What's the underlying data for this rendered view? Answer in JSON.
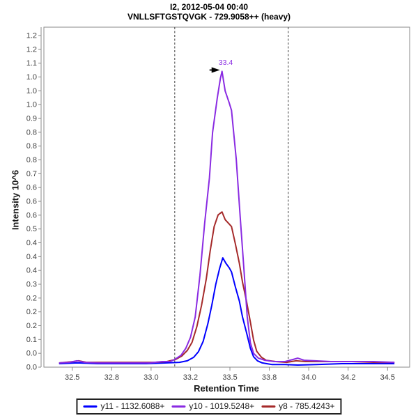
{
  "chart_data": {
    "type": "line",
    "title": "I2, 2012-05-04 00:40",
    "subtitle": "VNLLSFTGSTQVGK - 729.9058++ (heavy)",
    "xlabel": "Retention Time",
    "ylabel": "Intensity 10^6",
    "grid": false,
    "legend_position": "bottom-center",
    "x_axis": {
      "min": 32.32,
      "max": 34.64,
      "tick_values": [
        32.5,
        32.75,
        33.0,
        33.25,
        33.5,
        33.75,
        34.0,
        34.25,
        34.5
      ],
      "tick_labels": [
        "32.5",
        "32.8",
        "33.0",
        "33.2",
        "33.5",
        "33.8",
        "34.0",
        "34.2",
        "34.5"
      ]
    },
    "y_axis": {
      "min": 0,
      "max": 1.2815,
      "top_tick_value": 1.25,
      "tick_labels": [
        "1.2",
        "1.2",
        "1.1",
        "1.0",
        "1.0",
        "1.0",
        "0.9",
        "0.8",
        "0.8",
        "0.8",
        "0.7",
        "0.6",
        "0.6",
        "0.6",
        "0.5",
        "0.4",
        "0.4",
        "0.4",
        "0.3",
        "0.2",
        "0.2",
        "0.2",
        "0.1",
        "0.0",
        "0.0"
      ]
    },
    "integration_boundaries": {
      "start_rt": 33.15,
      "end_rt": 33.87
    },
    "peak_annotation": {
      "label": "33.4",
      "rt": 33.45,
      "intensity": 1.12
    },
    "colors": {
      "axis": "#8a8a8a",
      "tick_text": "#414141",
      "boundary": "#3f3f3f",
      "arrow": "#000000"
    },
    "series": [
      {
        "name": "y11 - 1132.6088+",
        "color": "#0000FF",
        "points": [
          [
            32.42,
            0.013
          ],
          [
            32.53,
            0.016
          ],
          [
            32.66,
            0.013
          ],
          [
            32.81,
            0.013
          ],
          [
            32.97,
            0.013
          ],
          [
            33.1,
            0.016
          ],
          [
            33.18,
            0.018
          ],
          [
            33.23,
            0.024
          ],
          [
            33.27,
            0.037
          ],
          [
            33.3,
            0.058
          ],
          [
            33.33,
            0.097
          ],
          [
            33.36,
            0.163
          ],
          [
            33.385,
            0.233
          ],
          [
            33.41,
            0.312
          ],
          [
            33.435,
            0.373
          ],
          [
            33.455,
            0.412
          ],
          [
            33.475,
            0.391
          ],
          [
            33.495,
            0.375
          ],
          [
            33.51,
            0.359
          ],
          [
            33.535,
            0.302
          ],
          [
            33.56,
            0.249
          ],
          [
            33.58,
            0.189
          ],
          [
            33.605,
            0.131
          ],
          [
            33.63,
            0.071
          ],
          [
            33.65,
            0.039
          ],
          [
            33.675,
            0.024
          ],
          [
            33.705,
            0.016
          ],
          [
            33.765,
            0.01
          ],
          [
            33.85,
            0.01
          ],
          [
            33.93,
            0.008
          ],
          [
            34.05,
            0.01
          ],
          [
            34.21,
            0.013
          ],
          [
            34.38,
            0.013
          ],
          [
            34.54,
            0.013
          ]
        ]
      },
      {
        "name": "y10 - 1019.5248+",
        "color": "#8A2BE2",
        "points": [
          [
            32.42,
            0.016
          ],
          [
            32.48,
            0.018
          ],
          [
            32.53,
            0.024
          ],
          [
            32.58,
            0.018
          ],
          [
            32.66,
            0.016
          ],
          [
            32.77,
            0.016
          ],
          [
            32.88,
            0.016
          ],
          [
            32.99,
            0.016
          ],
          [
            33.07,
            0.021
          ],
          [
            33.12,
            0.021
          ],
          [
            33.15,
            0.029
          ],
          [
            33.19,
            0.045
          ],
          [
            33.22,
            0.071
          ],
          [
            33.25,
            0.113
          ],
          [
            33.28,
            0.189
          ],
          [
            33.31,
            0.346
          ],
          [
            33.34,
            0.543
          ],
          [
            33.37,
            0.713
          ],
          [
            33.39,
            0.884
          ],
          [
            33.42,
            1.015
          ],
          [
            33.44,
            1.089
          ],
          [
            33.45,
            1.115
          ],
          [
            33.47,
            1.041
          ],
          [
            33.495,
            0.997
          ],
          [
            33.51,
            0.968
          ],
          [
            33.54,
            0.784
          ],
          [
            33.565,
            0.569
          ],
          [
            33.59,
            0.359
          ],
          [
            33.61,
            0.189
          ],
          [
            33.63,
            0.092
          ],
          [
            33.65,
            0.052
          ],
          [
            33.68,
            0.034
          ],
          [
            33.72,
            0.026
          ],
          [
            33.78,
            0.021
          ],
          [
            33.85,
            0.021
          ],
          [
            33.9,
            0.029
          ],
          [
            33.93,
            0.034
          ],
          [
            33.97,
            0.026
          ],
          [
            34.04,
            0.024
          ],
          [
            34.14,
            0.021
          ],
          [
            34.27,
            0.021
          ],
          [
            34.41,
            0.021
          ],
          [
            34.54,
            0.018
          ]
        ]
      },
      {
        "name": "y8 - 785.4243+",
        "color": "#A52A2A",
        "points": [
          [
            32.42,
            0.016
          ],
          [
            32.51,
            0.021
          ],
          [
            32.54,
            0.024
          ],
          [
            32.59,
            0.018
          ],
          [
            32.73,
            0.018
          ],
          [
            32.88,
            0.018
          ],
          [
            33.02,
            0.018
          ],
          [
            33.1,
            0.021
          ],
          [
            33.155,
            0.029
          ],
          [
            33.195,
            0.042
          ],
          [
            33.23,
            0.063
          ],
          [
            33.26,
            0.094
          ],
          [
            33.29,
            0.152
          ],
          [
            33.32,
            0.233
          ],
          [
            33.35,
            0.333
          ],
          [
            33.375,
            0.438
          ],
          [
            33.4,
            0.53
          ],
          [
            33.425,
            0.574
          ],
          [
            33.45,
            0.585
          ],
          [
            33.47,
            0.556
          ],
          [
            33.495,
            0.54
          ],
          [
            33.51,
            0.53
          ],
          [
            33.535,
            0.464
          ],
          [
            33.56,
            0.391
          ],
          [
            33.58,
            0.32
          ],
          [
            33.605,
            0.249
          ],
          [
            33.63,
            0.17
          ],
          [
            33.65,
            0.102
          ],
          [
            33.67,
            0.06
          ],
          [
            33.7,
            0.037
          ],
          [
            33.73,
            0.026
          ],
          [
            33.79,
            0.021
          ],
          [
            33.86,
            0.018
          ],
          [
            33.92,
            0.024
          ],
          [
            33.98,
            0.021
          ],
          [
            34.1,
            0.021
          ],
          [
            34.27,
            0.021
          ],
          [
            34.43,
            0.018
          ],
          [
            34.54,
            0.018
          ]
        ]
      }
    ]
  }
}
